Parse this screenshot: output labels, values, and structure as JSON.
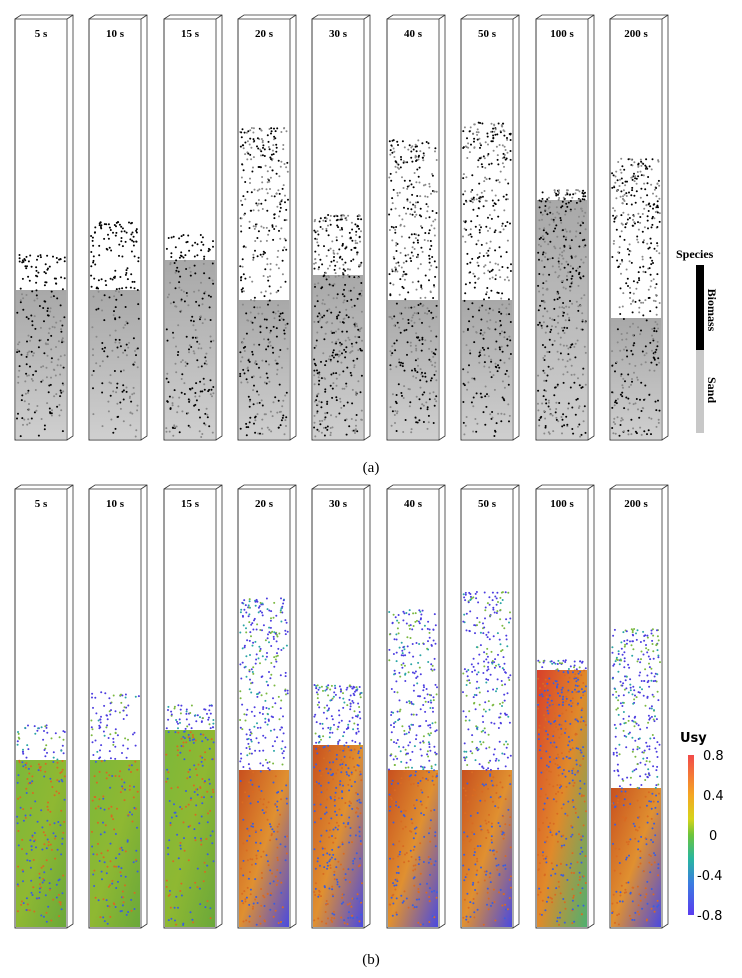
{
  "panel_a": {
    "caption": "(a)",
    "times": [
      "5 s",
      "10 s",
      "15 s",
      "20 s",
      "30 s",
      "40 s",
      "50 s",
      "100 s",
      "200 s"
    ],
    "legend": {
      "title": "Species",
      "entries": [
        {
          "label": "Biomass",
          "color": "#000000"
        },
        {
          "label": "Sand",
          "color": "#c8c8c8"
        }
      ]
    }
  },
  "panel_b": {
    "caption": "(b)",
    "times": [
      "5 s",
      "10 s",
      "15 s",
      "20 s",
      "30 s",
      "40 s",
      "50 s",
      "100 s",
      "200 s"
    ],
    "colorbar": {
      "title": "Usy",
      "ticks": [
        "0.8",
        "0.4",
        "0",
        "-0.4",
        "-0.8"
      ],
      "range": [
        -0.8,
        0.8
      ],
      "colors": [
        "#f24a4a",
        "#f5a623",
        "#d6d41a",
        "#6cc43c",
        "#28b6a0",
        "#3a7de0",
        "#5a3cf0"
      ]
    }
  }
}
